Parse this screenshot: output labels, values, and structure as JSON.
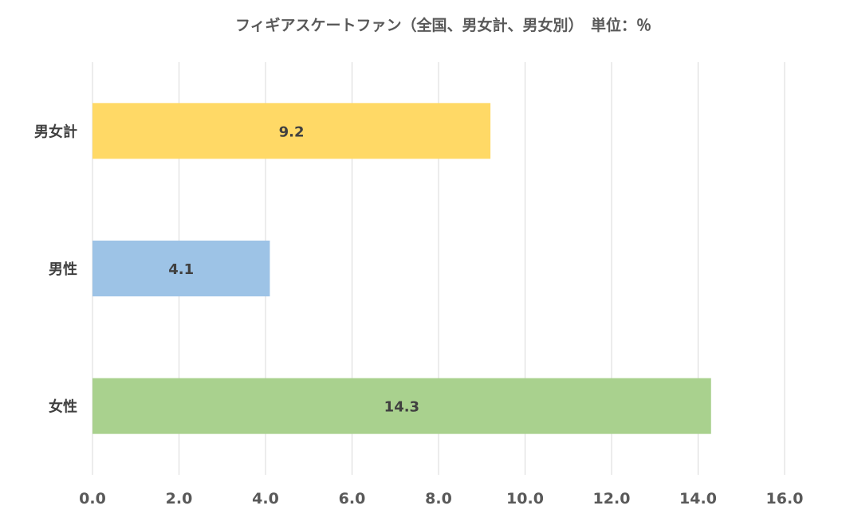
{
  "chart_data": {
    "type": "bar",
    "orientation": "horizontal",
    "title": "フィギアスケートファン（全国、男女計、男女別）　単位：％",
    "categories": [
      "男女計",
      "男性",
      "女性"
    ],
    "values": [
      9.2,
      4.1,
      14.3
    ],
    "data_labels": [
      "9.2",
      "4.1",
      "14.3"
    ],
    "colors": [
      "#FFD966",
      "#9DC3E6",
      "#A9D18E"
    ],
    "xlim": [
      0,
      16
    ],
    "x_ticks": [
      "0.0",
      "2.0",
      "4.0",
      "6.0",
      "8.0",
      "10.0",
      "12.0",
      "14.0",
      "16.0"
    ],
    "grid": true,
    "legend": "none"
  }
}
